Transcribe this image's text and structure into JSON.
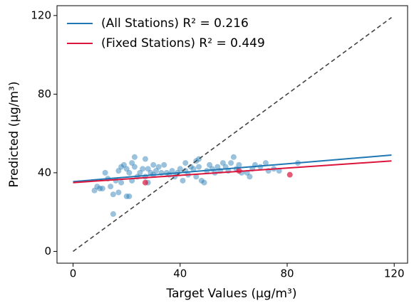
{
  "chart_data": {
    "type": "scatter",
    "xlabel": "Target Values (μg/m³)",
    "ylabel": "Predicted (μg/m³)",
    "xlim": [
      -6,
      125
    ],
    "ylim": [
      -6,
      125
    ],
    "xticks": [
      0,
      40,
      80,
      120
    ],
    "yticks": [
      0,
      40,
      80,
      120
    ],
    "grid": false,
    "legend": "upper left",
    "reference_line": {
      "x": [
        0,
        119
      ],
      "values": [
        0,
        119
      ],
      "color": "#444444",
      "dashed": true
    },
    "series": [
      {
        "name": "(All Stations) R² = 0.216",
        "color": "#1f77b4",
        "x": [
          8,
          9,
          10,
          11,
          12,
          13,
          14,
          15,
          15,
          16,
          17,
          17,
          18,
          18,
          19,
          20,
          20,
          21,
          21,
          22,
          22,
          23,
          23,
          24,
          25,
          26,
          27,
          27,
          28,
          28,
          29,
          30,
          30,
          31,
          32,
          33,
          34,
          35,
          36,
          37,
          38,
          39,
          40,
          41,
          42,
          42,
          43,
          44,
          45,
          46,
          46,
          47,
          47,
          48,
          49,
          50,
          51,
          52,
          53,
          54,
          55,
          56,
          57,
          58,
          59,
          60,
          61,
          62,
          63,
          65,
          66,
          67,
          68,
          70,
          72,
          73,
          75,
          77,
          84
        ],
        "values": [
          31,
          33,
          32,
          32,
          40,
          37,
          33,
          19,
          29,
          36,
          30,
          41,
          43,
          35,
          44,
          28,
          42,
          28,
          40,
          45,
          36,
          48,
          43,
          38,
          40,
          42,
          38,
          47,
          42,
          35,
          40,
          44,
          39,
          41,
          43,
          40,
          44,
          40,
          39,
          41,
          38,
          40,
          42,
          36,
          45,
          41,
          39,
          43,
          42,
          46,
          38,
          47,
          43,
          36,
          35,
          41,
          44,
          42,
          40,
          43,
          41,
          45,
          43,
          41,
          45,
          48,
          42,
          44,
          40,
          40,
          38,
          42,
          44,
          43,
          45,
          41,
          42,
          41,
          45
        ],
        "line_x": [
          0,
          119
        ],
        "line_values": [
          35.5,
          49
        ]
      },
      {
        "name": "(Fixed Stations) R² = 0.449",
        "color": "#dc143c",
        "x": [
          27,
          62,
          81
        ],
        "values": [
          35,
          41,
          39
        ],
        "line_x": [
          0,
          119
        ],
        "line_values": [
          35,
          46
        ]
      }
    ]
  }
}
